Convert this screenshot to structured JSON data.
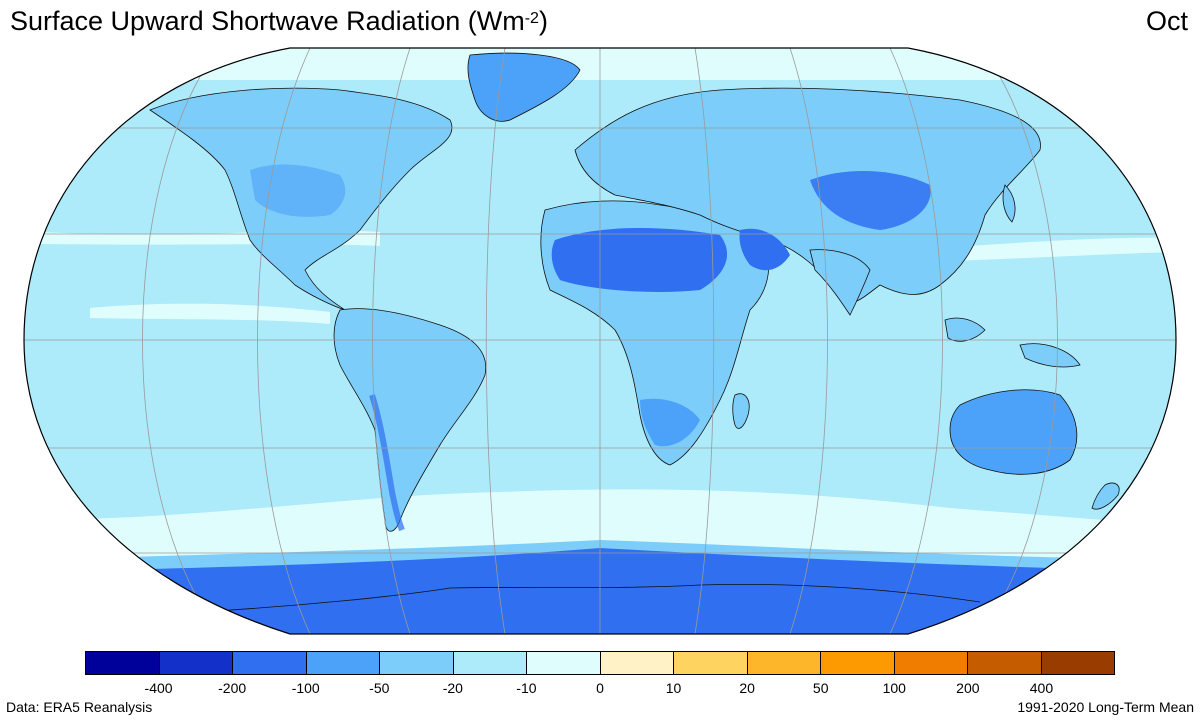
{
  "header": {
    "title_main": "Surface Upward Shortwave Radiation (Wm",
    "title_sup": "-2",
    "title_close": ")",
    "month": "Oct"
  },
  "legend": {
    "colors": [
      "#00009a",
      "#1330c8",
      "#2f6ff0",
      "#4ca2f8",
      "#7dcdfa",
      "#adeafa",
      "#e0fdfd",
      "#fef2c6",
      "#fed35f",
      "#fdb52a",
      "#fd9a02",
      "#f07c00",
      "#c65c00",
      "#983c00"
    ],
    "tick_labels": [
      "-400",
      "-200",
      "-100",
      "-50",
      "-20",
      "-10",
      "0",
      "10",
      "20",
      "50",
      "100",
      "200",
      "400"
    ]
  },
  "footer": {
    "source": "Data: ERA5 Reanalysis",
    "period": "1991-2020 Long-Term Mean"
  }
}
